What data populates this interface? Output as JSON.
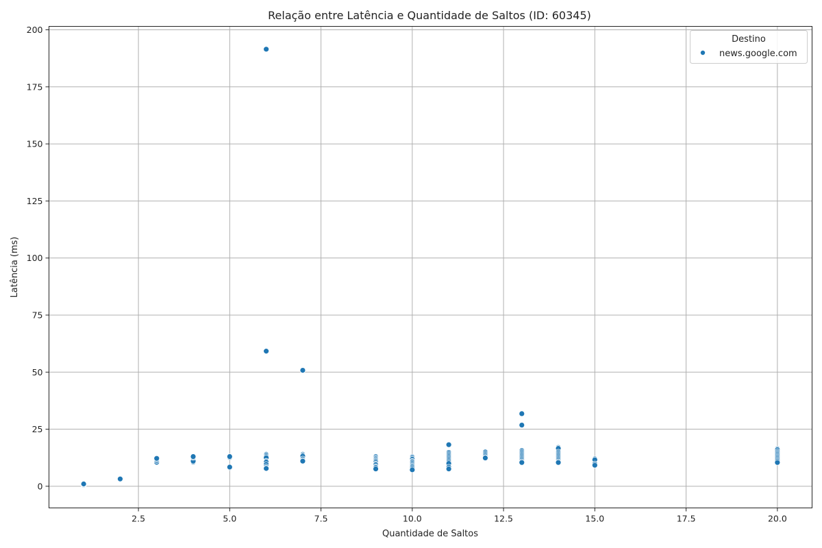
{
  "chart_data": {
    "type": "scatter",
    "title": "Relação entre Latência e Quantidade de Saltos (ID: 60345)",
    "xlabel": "Quantidade de Saltos",
    "ylabel": "Latência (ms)",
    "xlim": [
      0.05,
      20.95
    ],
    "ylim": [
      -9.5,
      201.5
    ],
    "xticks": [
      2.5,
      5.0,
      7.5,
      10.0,
      12.5,
      15.0,
      17.5,
      20.0
    ],
    "yticks": [
      0,
      25,
      50,
      75,
      100,
      125,
      150,
      175,
      200
    ],
    "grid": true,
    "legend": {
      "title": "Destino",
      "placement": "top-right"
    },
    "series": [
      {
        "name": "news.google.com",
        "color": "#1f77b4",
        "points": [
          [
            1,
            0.5
          ],
          [
            1,
            0.8
          ],
          [
            1,
            1.0
          ],
          [
            2,
            2.8
          ],
          [
            2,
            3.0
          ],
          [
            2,
            3.2
          ],
          [
            3,
            10.5
          ],
          [
            3,
            11.2
          ],
          [
            3,
            11.8
          ],
          [
            3,
            12.2
          ],
          [
            4,
            10.6
          ],
          [
            4,
            11.0
          ],
          [
            4,
            12.6
          ],
          [
            4,
            13.0
          ],
          [
            5,
            8.1
          ],
          [
            5,
            8.4
          ],
          [
            5,
            12.6
          ],
          [
            5,
            13.0
          ],
          [
            6,
            191.5
          ],
          [
            6,
            59.2
          ],
          [
            6,
            14.0
          ],
          [
            6,
            13.6
          ],
          [
            6,
            13.0
          ],
          [
            6,
            12.5
          ],
          [
            6,
            11.0
          ],
          [
            6,
            10.6
          ],
          [
            6,
            9.6
          ],
          [
            6,
            8.6
          ],
          [
            6,
            8.0
          ],
          [
            6,
            7.8
          ],
          [
            7,
            50.8
          ],
          [
            7,
            14.0
          ],
          [
            7,
            13.6
          ],
          [
            7,
            13.2
          ],
          [
            7,
            12.0
          ],
          [
            7,
            11.4
          ],
          [
            7,
            11.0
          ],
          [
            9,
            13.0
          ],
          [
            9,
            12.5
          ],
          [
            9,
            12.0
          ],
          [
            9,
            11.5
          ],
          [
            9,
            11.0
          ],
          [
            9,
            10.5
          ],
          [
            9,
            9.8
          ],
          [
            9,
            9.4
          ],
          [
            9,
            8.6
          ],
          [
            9,
            8.2
          ],
          [
            9,
            7.6
          ],
          [
            10,
            12.8
          ],
          [
            10,
            12.3
          ],
          [
            10,
            11.8
          ],
          [
            10,
            11.0
          ],
          [
            10,
            10.6
          ],
          [
            10,
            10.0
          ],
          [
            10,
            9.4
          ],
          [
            10,
            8.9
          ],
          [
            10,
            8.4
          ],
          [
            10,
            7.8
          ],
          [
            10,
            7.2
          ],
          [
            11,
            18.2
          ],
          [
            11,
            14.8
          ],
          [
            11,
            14.2
          ],
          [
            11,
            13.6
          ],
          [
            11,
            13.0
          ],
          [
            11,
            12.4
          ],
          [
            11,
            11.8
          ],
          [
            11,
            11.2
          ],
          [
            11,
            10.6
          ],
          [
            11,
            10.0
          ],
          [
            11,
            8.4
          ],
          [
            11,
            7.6
          ],
          [
            12,
            15.0
          ],
          [
            12,
            14.4
          ],
          [
            12,
            13.8
          ],
          [
            12,
            13.2
          ],
          [
            12,
            12.6
          ],
          [
            12,
            12.4
          ],
          [
            13,
            31.8
          ],
          [
            13,
            26.8
          ],
          [
            13,
            15.6
          ],
          [
            13,
            15.0
          ],
          [
            13,
            14.4
          ],
          [
            13,
            13.8
          ],
          [
            13,
            13.2
          ],
          [
            13,
            12.6
          ],
          [
            13,
            12.0
          ],
          [
            13,
            11.4
          ],
          [
            13,
            10.8
          ],
          [
            13,
            10.4
          ],
          [
            14,
            17.0
          ],
          [
            14,
            16.6
          ],
          [
            14,
            15.0
          ],
          [
            14,
            14.4
          ],
          [
            14,
            13.8
          ],
          [
            14,
            13.2
          ],
          [
            14,
            12.6
          ],
          [
            14,
            12.0
          ],
          [
            14,
            11.4
          ],
          [
            14,
            10.8
          ],
          [
            14,
            10.4
          ],
          [
            15,
            12.0
          ],
          [
            15,
            11.6
          ],
          [
            15,
            9.8
          ],
          [
            15,
            9.2
          ],
          [
            20,
            16.4
          ],
          [
            20,
            16.0
          ],
          [
            20,
            15.2
          ],
          [
            20,
            14.6
          ],
          [
            20,
            14.0
          ],
          [
            20,
            13.4
          ],
          [
            20,
            12.8
          ],
          [
            20,
            12.2
          ],
          [
            20,
            11.6
          ],
          [
            20,
            11.0
          ],
          [
            20,
            10.4
          ]
        ]
      }
    ]
  }
}
